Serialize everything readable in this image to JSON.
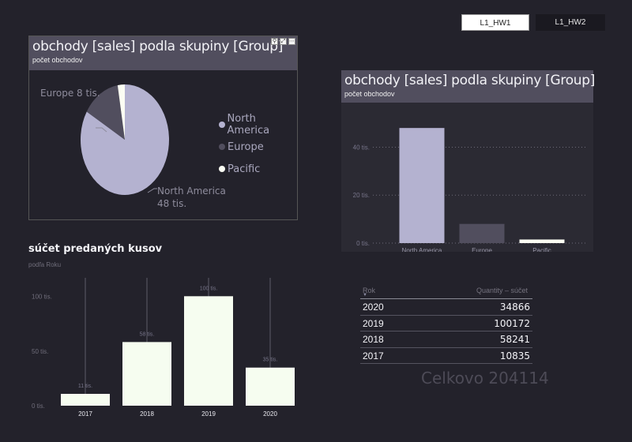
{
  "tabs": [
    "L1_HW1",
    "L1_HW2"
  ],
  "pie_visual": {
    "title": "obchody [sales] podla skupiny [Group]",
    "subtitle": "počet obchodov",
    "header_icons": [
      "filter-icon",
      "focus-mode-icon",
      "more-options-icon"
    ]
  },
  "bar_visual": {
    "title": "obchody [sales] podla skupiny [Group]",
    "subtitle": "počet obchodov"
  },
  "kusy_visual": {
    "title": "súčet predaných kusov",
    "subtitle": "podľa Roku"
  },
  "table": {
    "headers": [
      "Rok",
      "Quantity – súčet"
    ],
    "rows": [
      {
        "year": "2020",
        "value": "34866"
      },
      {
        "year": "2019",
        "value": "100172"
      },
      {
        "year": "2018",
        "value": "58241"
      },
      {
        "year": "2017",
        "value": "10835"
      }
    ],
    "total_label": "Celkovo 204114"
  },
  "colors": {
    "north_america": "#b4b2d0",
    "europe": "#514e5e",
    "pacific": "#fbfdf3",
    "kusy_bars": "#f6fdf0",
    "background": "#23222b",
    "header": "#514e5e"
  },
  "chart_data": [
    {
      "type": "pie",
      "title": "obchody [sales] podla skupiny [Group]",
      "subtitle": "počet obchodov",
      "categories": [
        "North America",
        "Europe",
        "Pacific"
      ],
      "values": [
        48000,
        8000,
        1500
      ],
      "data_labels": [
        "North America 48 tis.",
        "Europe 8 tis.",
        ""
      ],
      "legend": "right"
    },
    {
      "type": "bar",
      "title": "obchody [sales] podla skupiny [Group]",
      "subtitle": "počet obchodov",
      "categories": [
        "North America",
        "Europe",
        "Pacific"
      ],
      "values": [
        48000,
        8000,
        1500
      ],
      "ylim": [
        0,
        52000
      ],
      "yticks": [
        0,
        20000,
        40000
      ],
      "ytick_labels": [
        "0 tis.",
        "20 tis.",
        "40 tis."
      ],
      "grid": true
    },
    {
      "type": "bar",
      "title": "súčet predaných kusov",
      "subtitle": "podľa Roku",
      "categories": [
        "2017",
        "2018",
        "2019",
        "2020"
      ],
      "values": [
        10835,
        58241,
        100172,
        34866
      ],
      "data_labels": [
        "11 tis.",
        "58 tis.",
        "100 tis.",
        "35 tis."
      ],
      "ylim": [
        0,
        104000
      ],
      "yticks": [
        0,
        50000,
        100000
      ],
      "ytick_labels": [
        "0 tis.",
        "50 tis.",
        "100 tis."
      ],
      "grid": false
    }
  ]
}
